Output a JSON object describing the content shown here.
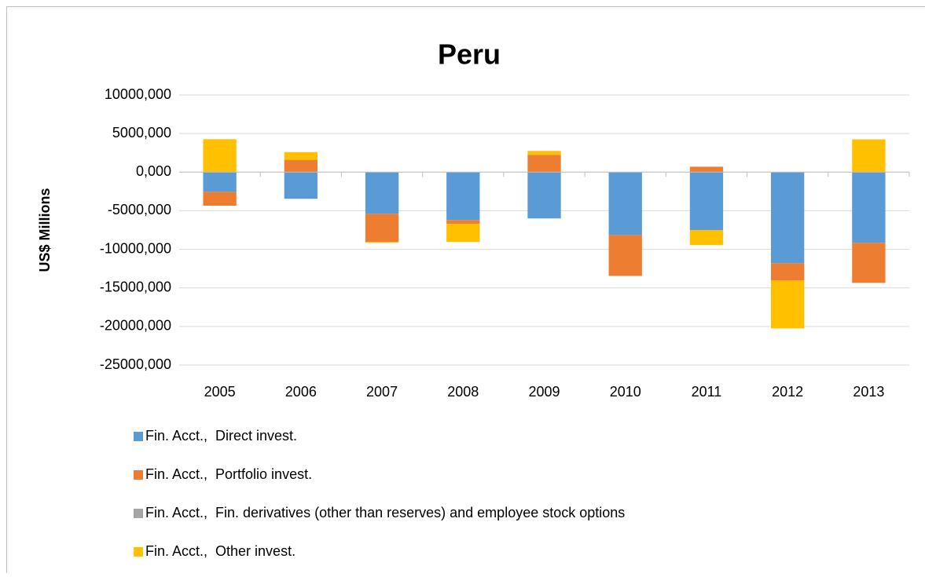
{
  "chart_data": {
    "type": "stacked_bar",
    "title": "Peru",
    "y_label": "US$ Millions",
    "categories": [
      "2005",
      "2006",
      "2007",
      "2008",
      "2009",
      "2010",
      "2011",
      "2012",
      "2013"
    ],
    "series": [
      {
        "name": "Fin. Acct.,  Direct invest.",
        "color": "#5b9bd5",
        "values": [
          -2550,
          -3450,
          -5400,
          -6200,
          -6000,
          -8150,
          -7500,
          -11800,
          -9150
        ]
      },
      {
        "name": "Fin. Acct.,  Portfolio invest.",
        "color": "#ed7d31",
        "values": [
          -1800,
          1600,
          -3650,
          -500,
          2250,
          -5300,
          700,
          -2250,
          -5200
        ]
      },
      {
        "name": "Fin. Acct.,  Fin. derivatives (other than reserves) and employee stock options",
        "color": "#a5a5a5",
        "values": [
          0,
          0,
          0,
          0,
          0,
          0,
          0,
          0,
          0
        ]
      },
      {
        "name": "Fin. Acct.,  Other invest.",
        "color": "#ffc000",
        "values": [
          4270,
          1000,
          -100,
          -2350,
          500,
          0,
          -1950,
          -6200,
          4250
        ]
      }
    ],
    "ylim": [
      -25000,
      10000
    ],
    "yticks": [
      {
        "value": -25000,
        "label": "-25000,000"
      },
      {
        "value": -20000,
        "label": "-20000,000"
      },
      {
        "value": -15000,
        "label": "-15000,000"
      },
      {
        "value": -10000,
        "label": "-10000,000"
      },
      {
        "value": -5000,
        "label": "-5000,000"
      },
      {
        "value": 0,
        "label": "0,000"
      },
      {
        "value": 5000,
        "label": "5000,000"
      },
      {
        "value": 10000,
        "label": "10000,000"
      }
    ],
    "grid": true,
    "legend": "bottom"
  }
}
